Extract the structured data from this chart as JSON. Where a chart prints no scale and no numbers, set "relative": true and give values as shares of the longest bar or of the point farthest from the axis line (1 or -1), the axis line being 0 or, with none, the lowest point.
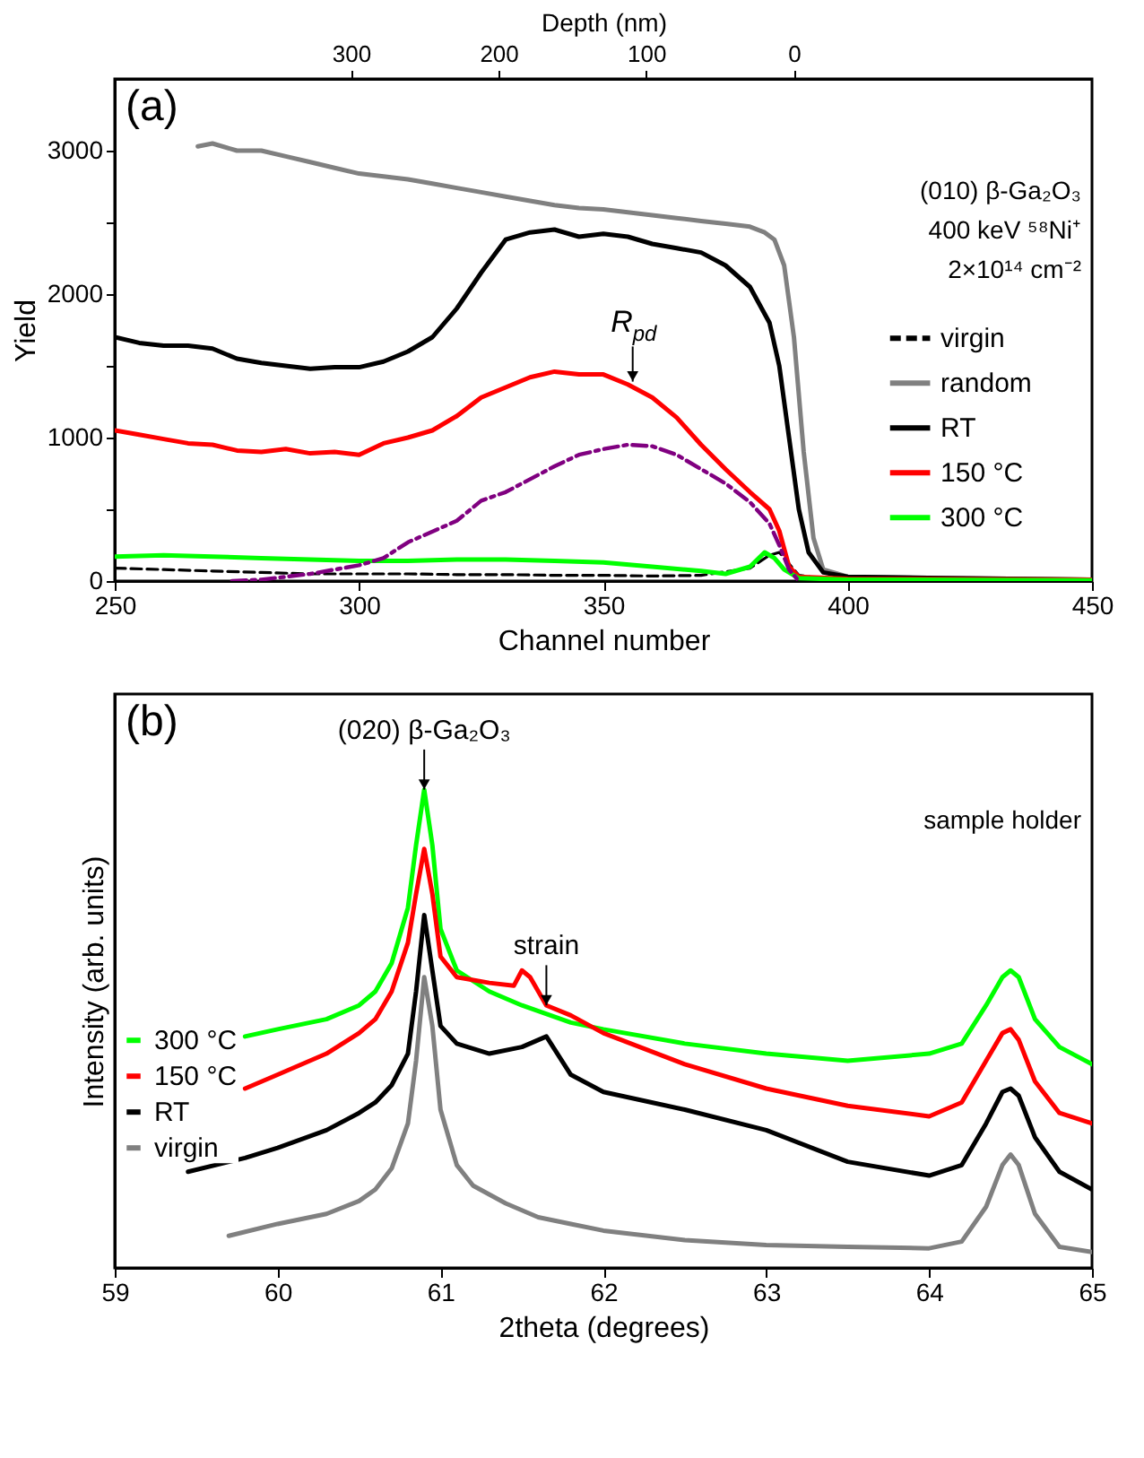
{
  "chart_data": [
    {
      "type": "line",
      "xlabel": "Channel number",
      "ylabel": "Yield",
      "x2label": "Depth (nm)",
      "xlim": [
        250,
        450
      ],
      "xticks": [
        250,
        300,
        350,
        400,
        450
      ],
      "ylim": [
        0,
        3500
      ],
      "yticks": [
        0,
        {
          "value": 500,
          "label": null
        },
        1000,
        {
          "value": 1500,
          "label": null
        },
        2000,
        {
          "value": 2500,
          "label": null
        },
        3000
      ],
      "x2lim": [
        460,
        -202
      ],
      "x2ticks": [
        300,
        200,
        100,
        0
      ],
      "grid": false,
      "legend": "right",
      "annotations": [
        "(a)",
        "(010) β-Ga₂O₃",
        "400 keV ⁵⁸Ni⁺",
        "2×10¹⁴ cm⁻²",
        {
          "text": "R$_{pd}$",
          "x": 356,
          "y": 1390
        }
      ],
      "series": [
        {
          "name": "virgin",
          "color": "#000000",
          "line_style": "dashed",
          "x": [
            250,
            260,
            270,
            280,
            290,
            300,
            310,
            320,
            330,
            340,
            350,
            360,
            370,
            380,
            384,
            386,
            388,
            390,
            395,
            400,
            450
          ],
          "values": [
            90,
            80,
            70,
            60,
            50,
            50,
            50,
            45,
            45,
            40,
            40,
            35,
            40,
            90,
            180,
            200,
            120,
            40,
            15,
            10,
            5
          ]
        },
        {
          "name": "random",
          "color": "#808080",
          "line_style": "solid",
          "x": [
            267,
            270,
            275,
            280,
            285,
            290,
            295,
            300,
            305,
            310,
            315,
            320,
            325,
            330,
            335,
            340,
            345,
            350,
            355,
            360,
            365,
            370,
            375,
            380,
            383,
            385,
            387,
            389,
            391,
            393,
            395,
            400,
            420,
            450
          ],
          "values": [
            3030,
            3050,
            3000,
            3000,
            2960,
            2920,
            2880,
            2840,
            2820,
            2800,
            2770,
            2740,
            2710,
            2680,
            2650,
            2620,
            2600,
            2590,
            2570,
            2550,
            2530,
            2510,
            2490,
            2470,
            2430,
            2380,
            2200,
            1700,
            900,
            300,
            80,
            30,
            20,
            10
          ]
        },
        {
          "name": "RT",
          "color": "#000000",
          "line_style": "solid",
          "x": [
            250,
            255,
            260,
            265,
            270,
            275,
            280,
            285,
            290,
            295,
            300,
            305,
            310,
            315,
            320,
            325,
            330,
            335,
            340,
            345,
            350,
            355,
            360,
            365,
            370,
            375,
            380,
            384,
            386,
            388,
            390,
            392,
            395,
            400,
            420,
            450
          ],
          "values": [
            1700,
            1660,
            1640,
            1640,
            1620,
            1550,
            1520,
            1500,
            1480,
            1490,
            1490,
            1530,
            1600,
            1700,
            1900,
            2150,
            2380,
            2430,
            2450,
            2400,
            2420,
            2400,
            2350,
            2320,
            2290,
            2200,
            2050,
            1800,
            1500,
            1000,
            500,
            200,
            60,
            30,
            20,
            10
          ]
        },
        {
          "name": "150 °C",
          "color": "#ff0000",
          "line_style": "solid",
          "x": [
            250,
            255,
            260,
            265,
            270,
            275,
            280,
            285,
            290,
            295,
            300,
            305,
            310,
            315,
            320,
            325,
            330,
            335,
            340,
            345,
            350,
            355,
            360,
            365,
            370,
            375,
            380,
            384,
            386,
            388,
            390,
            400,
            450
          ],
          "values": [
            1050,
            1020,
            990,
            960,
            950,
            910,
            900,
            920,
            890,
            900,
            880,
            960,
            1000,
            1050,
            1150,
            1280,
            1350,
            1420,
            1460,
            1440,
            1440,
            1370,
            1280,
            1140,
            950,
            780,
            620,
            500,
            350,
            100,
            30,
            15,
            10
          ]
        },
        {
          "name": "300 °C",
          "color": "#00ff00",
          "line_style": "solid",
          "x": [
            250,
            260,
            270,
            280,
            290,
            300,
            310,
            320,
            330,
            340,
            350,
            360,
            370,
            375,
            380,
            383,
            385,
            387,
            390,
            400,
            450
          ],
          "values": [
            170,
            180,
            170,
            160,
            150,
            140,
            140,
            150,
            150,
            140,
            130,
            100,
            70,
            50,
            100,
            200,
            160,
            80,
            20,
            10,
            5
          ]
        },
        {
          "color": "#800080",
          "line_style": "dashdot",
          "x": [
            274,
            280,
            290,
            300,
            305,
            310,
            320,
            325,
            330,
            340,
            345,
            350,
            355,
            360,
            365,
            370,
            375,
            380,
            384,
            386,
            388,
            390
          ],
          "values": [
            0,
            10,
            50,
            110,
            160,
            270,
            420,
            560,
            620,
            800,
            880,
            920,
            950,
            940,
            880,
            780,
            680,
            550,
            400,
            250,
            80,
            0
          ]
        }
      ]
    },
    {
      "type": "line",
      "relative": true,
      "xlabel": "2theta (degrees)",
      "ylabel": "Intensity (arb. units)",
      "xlim": [
        59,
        65
      ],
      "xticks": [
        59,
        60,
        61,
        62,
        63,
        64,
        65
      ],
      "grid": false,
      "legend": "left",
      "annotations": [
        "(b)",
        "sample holder",
        {
          "text": "(020) β-Ga₂O₃",
          "x": 60.9,
          "y": 1.0
        },
        {
          "text": "strain",
          "x": 61.65,
          "y": 0.549
        }
      ],
      "series": [
        {
          "name": "300 °C",
          "color": "#00ff00",
          "line_style": "solid",
          "x": [
            59.8,
            60.0,
            60.3,
            60.5,
            60.6,
            60.7,
            60.8,
            60.85,
            60.9,
            60.95,
            61.0,
            61.1,
            61.3,
            61.5,
            61.8,
            62.0,
            62.5,
            63.0,
            63.5,
            64.0,
            64.2,
            64.35,
            64.45,
            64.5,
            64.55,
            64.65,
            64.8,
            65.0
          ],
          "values": [
            0.484,
            0.499,
            0.52,
            0.549,
            0.578,
            0.637,
            0.753,
            0.884,
            1.0,
            0.884,
            0.709,
            0.622,
            0.578,
            0.549,
            0.513,
            0.499,
            0.469,
            0.448,
            0.433,
            0.448,
            0.469,
            0.549,
            0.608,
            0.622,
            0.608,
            0.52,
            0.462,
            0.426
          ]
        },
        {
          "name": "150 °C",
          "color": "#ff0000",
          "line_style": "solid",
          "x": [
            59.8,
            60.0,
            60.3,
            60.5,
            60.6,
            60.7,
            60.8,
            60.85,
            60.9,
            60.95,
            61.0,
            61.1,
            61.3,
            61.45,
            61.5,
            61.55,
            61.65,
            61.8,
            62.0,
            62.5,
            63.0,
            63.5,
            64.0,
            64.2,
            64.35,
            64.45,
            64.5,
            64.55,
            64.65,
            64.8,
            65.0
          ],
          "values": [
            0.375,
            0.404,
            0.448,
            0.491,
            0.52,
            0.578,
            0.68,
            0.782,
            0.876,
            0.782,
            0.651,
            0.608,
            0.596,
            0.59,
            0.622,
            0.608,
            0.549,
            0.528,
            0.491,
            0.426,
            0.375,
            0.339,
            0.317,
            0.346,
            0.433,
            0.491,
            0.499,
            0.477,
            0.39,
            0.324,
            0.302
          ]
        },
        {
          "name": "RT",
          "color": "#000000",
          "line_style": "solid",
          "x": [
            59.45,
            59.8,
            60.0,
            60.3,
            60.5,
            60.6,
            60.7,
            60.8,
            60.85,
            60.9,
            60.95,
            61.0,
            61.1,
            61.3,
            61.5,
            61.65,
            61.8,
            62.0,
            62.5,
            63.0,
            63.5,
            64.0,
            64.2,
            64.35,
            64.45,
            64.5,
            64.55,
            64.65,
            64.8,
            65.0
          ],
          "values": [
            0.201,
            0.23,
            0.251,
            0.288,
            0.324,
            0.346,
            0.382,
            0.448,
            0.578,
            0.738,
            0.622,
            0.506,
            0.469,
            0.448,
            0.462,
            0.484,
            0.404,
            0.368,
            0.331,
            0.288,
            0.222,
            0.193,
            0.215,
            0.302,
            0.368,
            0.375,
            0.36,
            0.273,
            0.201,
            0.164
          ]
        },
        {
          "name": "virgin",
          "color": "#808080",
          "line_style": "solid",
          "x": [
            59.7,
            60.0,
            60.3,
            60.5,
            60.6,
            60.7,
            60.8,
            60.85,
            60.9,
            60.95,
            61.0,
            61.1,
            61.2,
            61.4,
            61.6,
            61.8,
            62.0,
            62.5,
            63.0,
            63.5,
            64.0,
            64.2,
            64.35,
            64.45,
            64.5,
            64.55,
            64.65,
            64.8,
            65.0
          ],
          "values": [
            0.067,
            0.092,
            0.113,
            0.14,
            0.164,
            0.208,
            0.302,
            0.433,
            0.608,
            0.506,
            0.331,
            0.215,
            0.172,
            0.135,
            0.106,
            0.092,
            0.078,
            0.058,
            0.048,
            0.044,
            0.041,
            0.055,
            0.128,
            0.215,
            0.237,
            0.215,
            0.113,
            0.044,
            0.033
          ]
        }
      ]
    }
  ]
}
